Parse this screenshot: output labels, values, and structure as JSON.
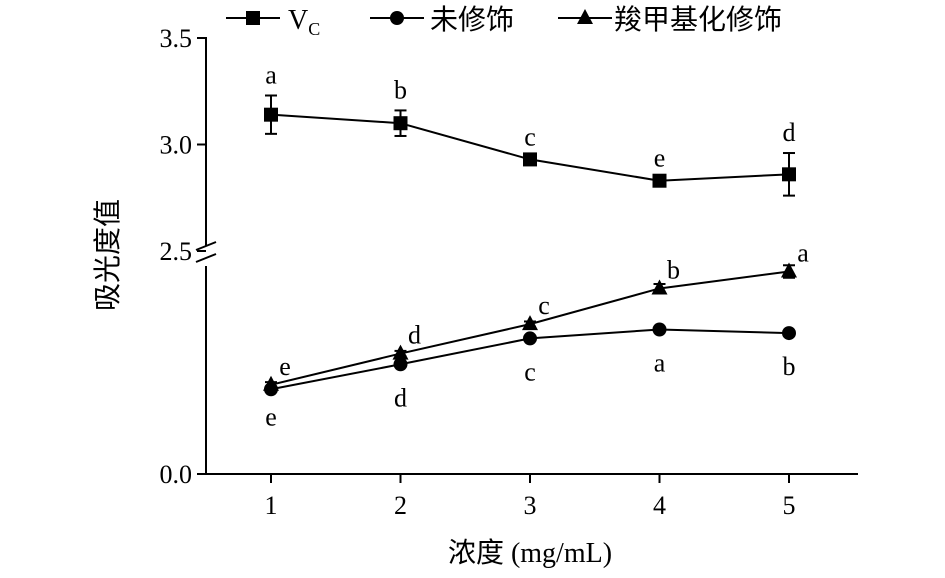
{
  "chart_data": {
    "type": "line",
    "xlabel": "浓度 (mg/mL)",
    "ylabel": "吸光度值",
    "x": [
      1,
      2,
      3,
      4,
      5
    ],
    "x_ticks": [
      "1",
      "2",
      "3",
      "4",
      "5"
    ],
    "y_ticks": [
      "0.0",
      "2.5",
      "3.0",
      "3.5"
    ],
    "y_axis_break": "between 2.5 and lower segment",
    "ylim_upper": [
      2.5,
      3.5
    ],
    "ylim_lower": [
      0.0,
      2.5
    ],
    "grid": false,
    "legend_position": "top",
    "series": [
      {
        "name": "V",
        "name_subscript": "C",
        "marker": "square",
        "values": [
          3.14,
          3.1,
          2.93,
          2.83,
          2.86
        ],
        "error": [
          0.09,
          0.06,
          0.01,
          0.01,
          0.1
        ],
        "labels": [
          "a",
          "b",
          "c",
          "e",
          "d"
        ],
        "label_pos": "above"
      },
      {
        "name": "未修饰",
        "marker": "circle",
        "values": [
          0.95,
          1.23,
          1.52,
          1.62,
          1.58
        ],
        "error": [
          0.02,
          0.02,
          0.02,
          0.02,
          0.02
        ],
        "labels": [
          "e",
          "d",
          "c",
          "a",
          "b"
        ],
        "label_pos": "below"
      },
      {
        "name": "羧甲基化修饰",
        "marker": "triangle",
        "values": [
          1.0,
          1.35,
          1.68,
          2.08,
          2.27
        ],
        "error": [
          0.03,
          0.03,
          0.03,
          0.05,
          0.07
        ],
        "labels": [
          "e",
          "d",
          "c",
          "b",
          "a"
        ],
        "label_pos": "above"
      }
    ]
  }
}
